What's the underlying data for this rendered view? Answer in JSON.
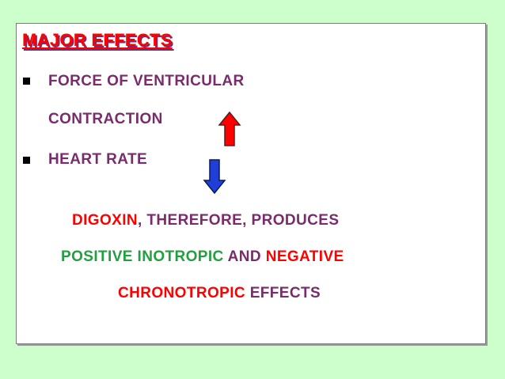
{
  "slide": {
    "title": "MAJOR EFFECTS",
    "bullets": [
      {
        "line1": "FORCE OF VENTRICULAR",
        "line2": "CONTRACTION",
        "arrow": "up-arrow-icon"
      },
      {
        "line1": "HEART RATE",
        "arrow": "down-arrow-icon"
      }
    ],
    "conclusion": {
      "line1": {
        "drug": "DIGOXIN",
        "rest": ", THEREFORE, PRODUCES"
      },
      "line2": {
        "positive": "POSITIVE INOTROPIC",
        "and": " AND ",
        "negative": "NEGATIVE"
      },
      "line3": {
        "chrono": "CHRONOTROPIC",
        "effects": " EFFECTS"
      }
    }
  },
  "colors": {
    "background": "#ccffcc",
    "title": "#ff0000",
    "body_text": "#7a2b6b",
    "highlight_red": "#ff0000",
    "highlight_green": "#22a040",
    "up_arrow_fill": "#ff0000",
    "down_arrow_fill": "#1f3fd8"
  }
}
